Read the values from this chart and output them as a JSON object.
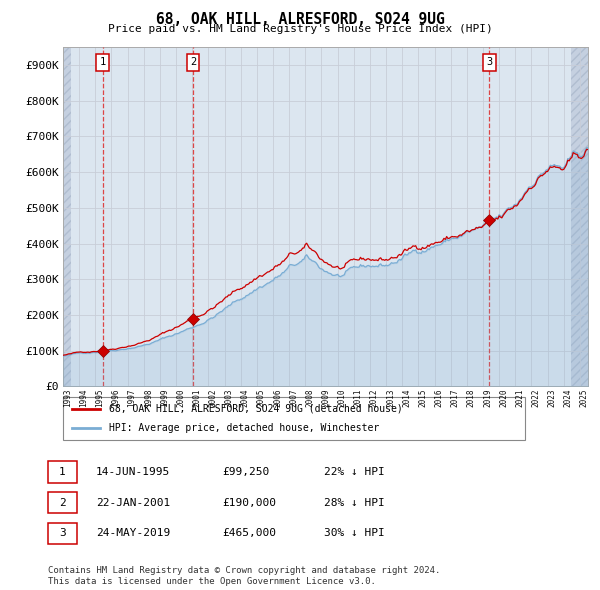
{
  "title": "68, OAK HILL, ALRESFORD, SO24 9UG",
  "subtitle": "Price paid vs. HM Land Registry's House Price Index (HPI)",
  "ylabel_ticks": [
    "£0",
    "£100K",
    "£200K",
    "£300K",
    "£400K",
    "£500K",
    "£600K",
    "£700K",
    "£800K",
    "£900K"
  ],
  "ytick_values": [
    0,
    100000,
    200000,
    300000,
    400000,
    500000,
    600000,
    700000,
    800000,
    900000
  ],
  "ylim": [
    0,
    950000
  ],
  "xlim_start": 1993.0,
  "xlim_end": 2025.5,
  "sale_color": "#cc0000",
  "hpi_color": "#7aadd4",
  "grid_color": "#c8cdd8",
  "sale_marker_dates": [
    1995.45,
    2001.06,
    2019.39
  ],
  "sale_marker_prices": [
    99250,
    190000,
    465000
  ],
  "sale_labels": [
    "1",
    "2",
    "3"
  ],
  "vertical_line_dates": [
    1995.45,
    2001.06,
    2019.39
  ],
  "legend_line1": "68, OAK HILL, ALRESFORD, SO24 9UG (detached house)",
  "legend_line2": "HPI: Average price, detached house, Winchester",
  "table_rows": [
    [
      "1",
      "14-JUN-1995",
      "£99,250",
      "22% ↓ HPI"
    ],
    [
      "2",
      "22-JAN-2001",
      "£190,000",
      "28% ↓ HPI"
    ],
    [
      "3",
      "24-MAY-2019",
      "£465,000",
      "30% ↓ HPI"
    ]
  ],
  "footnote": "Contains HM Land Registry data © Crown copyright and database right 2024.\nThis data is licensed under the Open Government Licence v3.0.",
  "bg_color": "#dce6f0",
  "hatch_color": "#c5d0e0"
}
